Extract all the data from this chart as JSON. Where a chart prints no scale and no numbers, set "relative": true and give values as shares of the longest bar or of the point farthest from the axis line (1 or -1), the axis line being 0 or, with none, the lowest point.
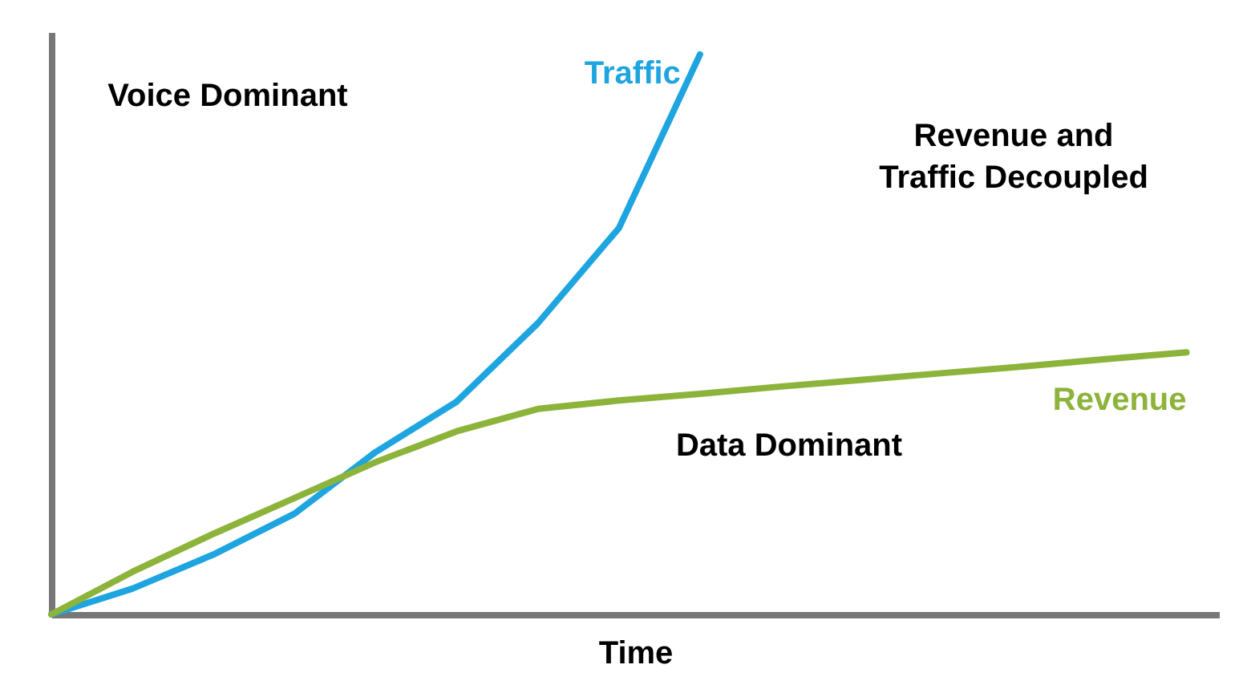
{
  "chart_data": {
    "type": "line",
    "relative": true,
    "xlabel": "Time",
    "tick_labels": false,
    "marker": "none",
    "line_style": "solid",
    "categories": [
      null,
      null,
      null,
      null,
      null,
      null,
      null,
      null,
      null,
      null,
      null,
      null,
      null,
      null,
      null
    ],
    "series": [
      {
        "name": "Traffic",
        "color": "#1ea5e0",
        "values": [
          0,
          0.046,
          0.107,
          0.18,
          0.29,
          0.38,
          0.52,
          0.69,
          1,
          null,
          null,
          null,
          null,
          null,
          null
        ]
      },
      {
        "name": "Revenue",
        "color": "#8cb33a",
        "values": [
          0,
          0.076,
          0.144,
          0.208,
          0.272,
          0.327,
          0.367,
          0.382,
          0.394,
          0.407,
          0.419,
          0.431,
          0.443,
          0.456,
          0.468
        ]
      }
    ],
    "annotations": [
      "Voice Dominant",
      "Revenue and Traffic Decoupled",
      "Data Dominant"
    ]
  }
}
